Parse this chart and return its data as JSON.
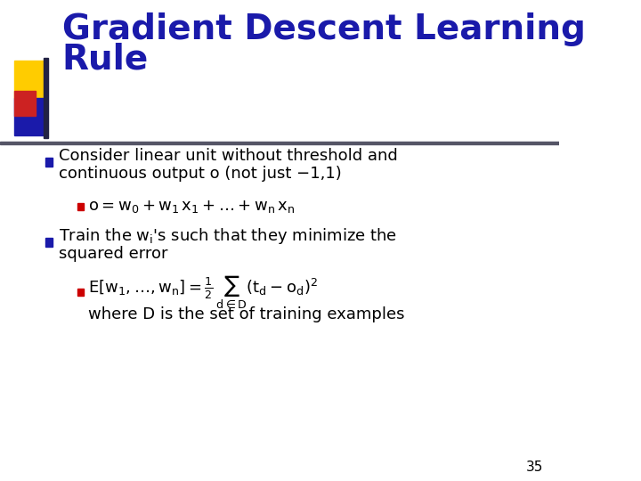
{
  "title_line1": "Gradient Descent Learning",
  "title_line2": "Rule",
  "title_color": "#1a1aaa",
  "background_color": "#ffffff",
  "slide_number": "35",
  "bullet1": "Consider linear unit without threshold and\ncontinuous output o (not just −1,1)",
  "sub_bullet1": "o=w",
  "bullet2_part1": "Train the w",
  "bullet2_part2": "s such that they minimize the\nsquared error",
  "sub_bullet2": "E[w",
  "where_line": "where D is the set of training examples",
  "bullet_color": "#1a1aaa",
  "sub_bullet_color": "#cc0000",
  "text_color": "#000000",
  "header_bar_color": "#888888",
  "square_yellow": "#ffcc00",
  "square_blue": "#1a1aaa",
  "square_red": "#cc2222"
}
